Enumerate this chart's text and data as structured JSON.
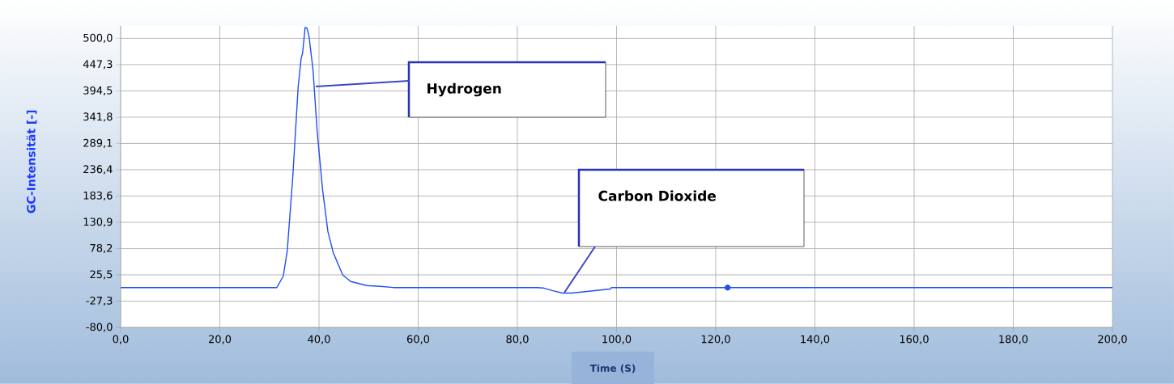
{
  "chart_data": {
    "type": "line",
    "xlabel": "Time (S)",
    "ylabel": "GC-Intensität [-]",
    "xlim": [
      0,
      200
    ],
    "ylim": [
      -80,
      525
    ],
    "xticks": [
      {
        "value": 0,
        "label": "0,0"
      },
      {
        "value": 20,
        "label": "20,0"
      },
      {
        "value": 40,
        "label": "40,0"
      },
      {
        "value": 60,
        "label": "60,0"
      },
      {
        "value": 80,
        "label": "80,0"
      },
      {
        "value": 100,
        "label": "100,0"
      },
      {
        "value": 120,
        "label": "120,0"
      },
      {
        "value": 140,
        "label": "140,0"
      },
      {
        "value": 160,
        "label": "160,0"
      },
      {
        "value": 180,
        "label": "180,0"
      },
      {
        "value": 200,
        "label": "200,0"
      }
    ],
    "yticks": [
      {
        "value": -80,
        "label": "-80,0"
      },
      {
        "value": -27.3,
        "label": "-27,3"
      },
      {
        "value": 25.5,
        "label": "25,5"
      },
      {
        "value": 78.2,
        "label": "78,2"
      },
      {
        "value": 130.9,
        "label": "130,9"
      },
      {
        "value": 183.6,
        "label": "183,6"
      },
      {
        "value": 236.4,
        "label": "236,4"
      },
      {
        "value": 289.1,
        "label": "289,1"
      },
      {
        "value": 341.8,
        "label": "341,8"
      },
      {
        "value": 394.5,
        "label": "394,5"
      },
      {
        "value": 447.3,
        "label": "447,3"
      },
      {
        "value": 500,
        "label": "500,0"
      }
    ],
    "grid": true,
    "series": [
      {
        "color": "#2050f0",
        "x": [
          0,
          31.5,
          32.8,
          33.6,
          34.7,
          35.8,
          36.4,
          36.7,
          37.2,
          37.6,
          38.0,
          38.8,
          39.6,
          40.7,
          41.8,
          42.9,
          44.8,
          46.4,
          49.7,
          52.9,
          55,
          83.9,
          85.3,
          87.0,
          89.1,
          91.0,
          98.7,
          99,
          200
        ],
        "values": [
          0,
          0,
          23,
          74,
          220,
          403,
          460,
          471,
          522,
          520,
          503,
          436,
          317,
          198,
          112,
          69,
          25,
          12,
          4,
          2,
          0,
          0,
          -1,
          -6,
          -11,
          -11,
          -3,
          0,
          0
        ]
      },
      {
        "type": "scatter",
        "marker": "circle",
        "color": "#2050f0",
        "x": [
          122.4
        ],
        "values": [
          0
        ]
      }
    ],
    "annotations": [
      "Hydrogen",
      "Carbon Dioxide"
    ]
  }
}
